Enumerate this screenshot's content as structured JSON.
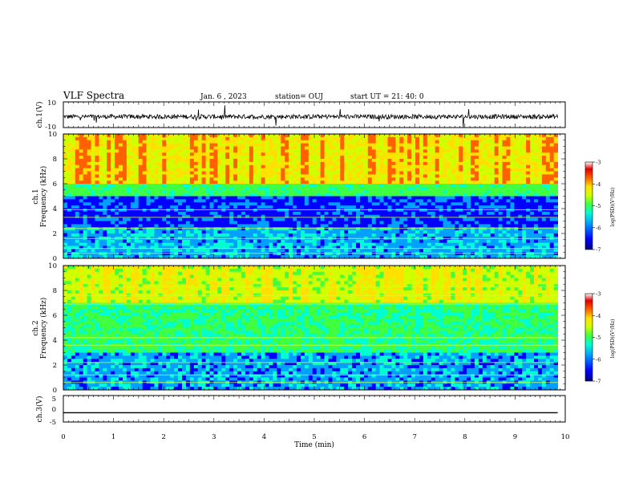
{
  "header": {
    "title": "VLF Spectra",
    "date": "Jan. 6 , 2023",
    "station": "station= OUJ",
    "start": "start UT =  21: 40: 0"
  },
  "chart_data": [
    {
      "type": "line",
      "panel": "ch1-waveform",
      "ylabel": "ch.1(V)",
      "ylim": [
        -10,
        10
      ],
      "ytick_labels": [
        "10",
        "-10"
      ],
      "xlim": [
        0,
        9.85
      ],
      "description_series": "noisy waveform centered near 0 V"
    },
    {
      "type": "heatmap",
      "panel": "ch1-spectrogram",
      "ylabel": "ch.1\nFrequency (kHz)",
      "ylim": [
        0,
        10
      ],
      "ytick_labels": [
        "0",
        "2",
        "4",
        "6",
        "8",
        "10"
      ],
      "xlim": [
        0,
        9.85
      ],
      "colorbar": {
        "label": "log(PSD)(V²/Hz)",
        "range": [
          -7,
          -3
        ],
        "tick_labels": [
          "-3",
          "-4",
          "-5",
          "-6",
          "-7"
        ]
      }
    },
    {
      "type": "heatmap",
      "panel": "ch2-spectrogram",
      "ylabel": "ch.2\nFrequency (kHz)",
      "ylim": [
        0,
        10
      ],
      "ytick_labels": [
        "0",
        "2",
        "4",
        "6",
        "8",
        "10"
      ],
      "xlim": [
        0,
        9.85
      ],
      "colorbar": {
        "label": "log(PSD)(V²/Hz)",
        "range": [
          -7,
          -3
        ],
        "tick_labels": [
          "-3",
          "-4",
          "-5",
          "-6",
          "-7"
        ]
      }
    },
    {
      "type": "line",
      "panel": "ch3-waveform",
      "ylabel": "ch.3(V)",
      "ylim": [
        -5,
        5
      ],
      "ytick_labels": [
        "5",
        "0",
        "-5"
      ],
      "xlim": [
        0,
        9.85
      ],
      "series": [
        {
          "values": [
            [
              0,
              -1.5
            ],
            [
              9.85,
              -1.5
            ]
          ]
        }
      ]
    }
  ],
  "xaxis": {
    "label": "Time (min)",
    "range": [
      0,
      10
    ],
    "tick_labels": [
      "0",
      "1",
      "2",
      "3",
      "4",
      "5",
      "6",
      "7",
      "8",
      "9",
      "10"
    ]
  },
  "colors": {
    "colormap": [
      "#00007a",
      "#0000ff",
      "#00a0ff",
      "#00ffd0",
      "#40ff40",
      "#d0ff00",
      "#ffe000",
      "#ff6000",
      "#e00000",
      "#ffffff"
    ],
    "line": "#000000"
  }
}
